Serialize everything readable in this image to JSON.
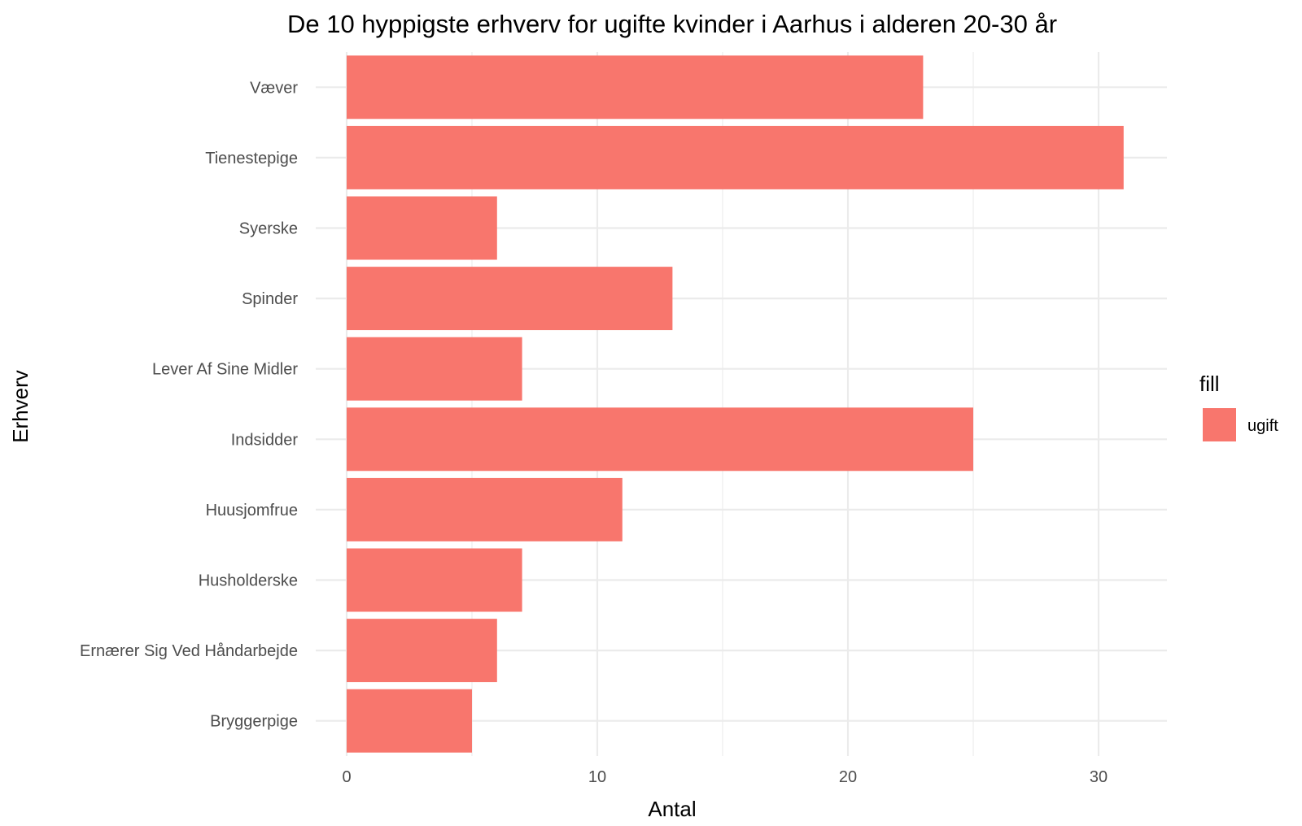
{
  "chart_data": {
    "type": "bar",
    "orientation": "horizontal",
    "title": "De 10 hyppigste erhverv for ugifte kvinder i Aarhus i alderen 20-30 år",
    "xlabel": "Antal",
    "ylabel": "Erhverv",
    "categories": [
      "Væver",
      "Tienestepige",
      "Syerske",
      "Spinder",
      "Lever Af Sine Midler",
      "Indsidder",
      "Huusjomfrue",
      "Husholderske",
      "Ernærer Sig Ved Håndarbejde",
      "Bryggerpige"
    ],
    "series": [
      {
        "name": "ugift",
        "color": "#f8766d",
        "values": [
          23,
          31,
          6,
          13,
          7,
          25,
          11,
          7,
          6,
          5
        ]
      }
    ],
    "xlim": [
      0,
      32.6
    ],
    "xticks": [
      0,
      10,
      20,
      30
    ],
    "xtick_labels": [
      "0",
      "10",
      "20",
      "30"
    ],
    "grid": true,
    "legend": {
      "title": "fill",
      "position": "right",
      "entries": [
        "ugift"
      ]
    }
  }
}
